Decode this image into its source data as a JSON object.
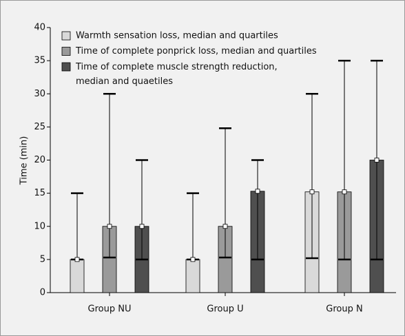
{
  "chart_data": {
    "type": "bar",
    "ylabel": "Time (min)",
    "categories": [
      "Group NU",
      "Group U",
      "Group N"
    ],
    "series": [
      {
        "name": "Warmth sensation loss, median and quartiles",
        "color": "#d9d9d9",
        "values": [
          5,
          5,
          15.2
        ],
        "q1": [
          5,
          5,
          5.2
        ],
        "q3": [
          15,
          15,
          30
        ]
      },
      {
        "name": "Time of complete ponprick loss, median and quartiles",
        "color": "#9a9a9a",
        "values": [
          10,
          10,
          15.2
        ],
        "q1": [
          5.3,
          5.3,
          5
        ],
        "q3": [
          30,
          24.8,
          35
        ]
      },
      {
        "name": "Time of complete muscle strength reduction,\nmedian and quaetiles",
        "color": "#4f4f4f",
        "values": [
          10,
          15.3,
          20
        ],
        "q1": [
          5,
          5,
          5
        ],
        "q3": [
          20,
          20,
          35
        ]
      }
    ],
    "ylim": [
      0,
      40
    ],
    "yticks": [
      0,
      5,
      10,
      15,
      20,
      25,
      30,
      35,
      40
    ]
  }
}
